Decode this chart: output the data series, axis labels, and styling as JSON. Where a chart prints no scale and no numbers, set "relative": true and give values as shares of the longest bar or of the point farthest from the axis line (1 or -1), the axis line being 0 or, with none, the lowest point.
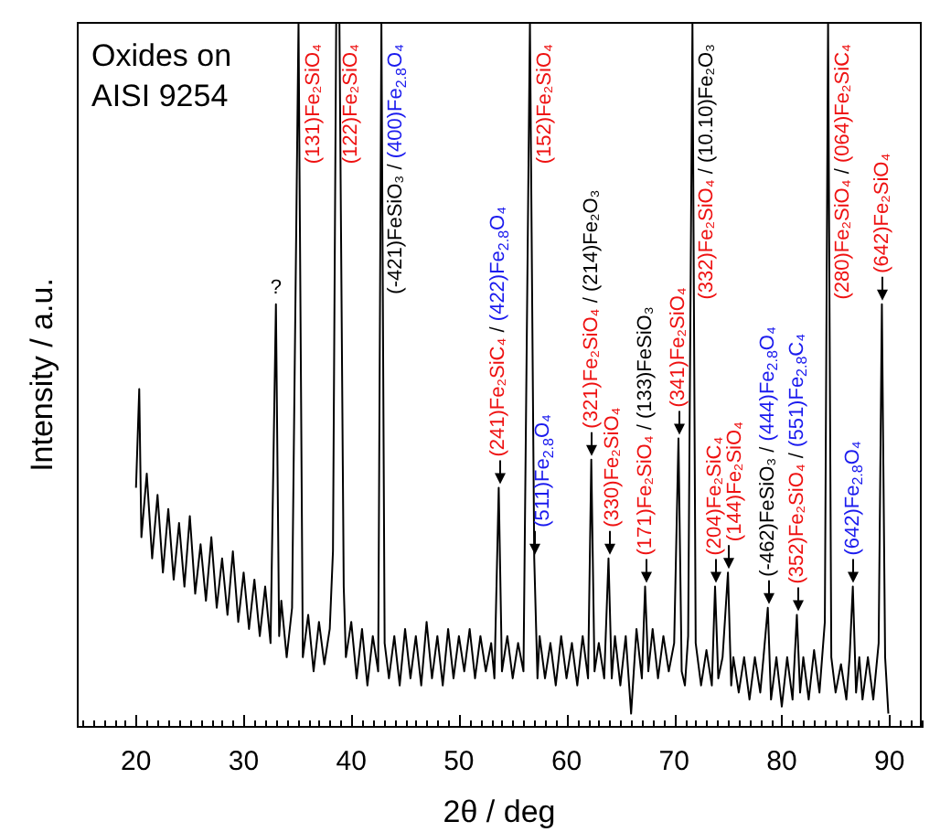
{
  "chart_data": {
    "type": "line",
    "title": "Oxides on AISI 9254",
    "xlabel": "2θ / deg",
    "ylabel": "Intensity / a.u.",
    "relative": true,
    "color": "#000000",
    "xlim": [
      14.5,
      93
    ],
    "xticks": [
      {
        "value": 15,
        "label": null
      },
      {
        "value": 16,
        "label": null
      },
      {
        "value": 17,
        "label": null
      },
      {
        "value": 18,
        "label": null
      },
      {
        "value": 19,
        "label": null
      },
      20,
      {
        "value": 21,
        "label": null
      },
      {
        "value": 22,
        "label": null
      },
      {
        "value": 23,
        "label": null
      },
      {
        "value": 24,
        "label": null
      },
      {
        "value": 25,
        "label": null
      },
      {
        "value": 26,
        "label": null
      },
      {
        "value": 27,
        "label": null
      },
      {
        "value": 28,
        "label": null
      },
      {
        "value": 29,
        "label": null
      },
      30,
      {
        "value": 31,
        "label": null
      },
      {
        "value": 32,
        "label": null
      },
      {
        "value": 33,
        "label": null
      },
      {
        "value": 34,
        "label": null
      },
      {
        "value": 35,
        "label": null
      },
      {
        "value": 36,
        "label": null
      },
      {
        "value": 37,
        "label": null
      },
      {
        "value": 38,
        "label": null
      },
      {
        "value": 39,
        "label": null
      },
      40,
      {
        "value": 41,
        "label": null
      },
      {
        "value": 42,
        "label": null
      },
      {
        "value": 43,
        "label": null
      },
      {
        "value": 44,
        "label": null
      },
      {
        "value": 45,
        "label": null
      },
      {
        "value": 46,
        "label": null
      },
      {
        "value": 47,
        "label": null
      },
      {
        "value": 48,
        "label": null
      },
      {
        "value": 49,
        "label": null
      },
      50,
      {
        "value": 51,
        "label": null
      },
      {
        "value": 52,
        "label": null
      },
      {
        "value": 53,
        "label": null
      },
      {
        "value": 54,
        "label": null
      },
      {
        "value": 55,
        "label": null
      },
      {
        "value": 56,
        "label": null
      },
      {
        "value": 57,
        "label": null
      },
      {
        "value": 58,
        "label": null
      },
      {
        "value": 59,
        "label": null
      },
      60,
      {
        "value": 61,
        "label": null
      },
      {
        "value": 62,
        "label": null
      },
      {
        "value": 63,
        "label": null
      },
      {
        "value": 64,
        "label": null
      },
      {
        "value": 65,
        "label": null
      },
      {
        "value": 66,
        "label": null
      },
      {
        "value": 67,
        "label": null
      },
      {
        "value": 68,
        "label": null
      },
      {
        "value": 69,
        "label": null
      },
      70,
      {
        "value": 71,
        "label": null
      },
      {
        "value": 72,
        "label": null
      },
      {
        "value": 73,
        "label": null
      },
      {
        "value": 74,
        "label": null
      },
      {
        "value": 75,
        "label": null
      },
      {
        "value": 76,
        "label": null
      },
      {
        "value": 77,
        "label": null
      },
      {
        "value": 78,
        "label": null
      },
      {
        "value": 79,
        "label": null
      },
      80,
      {
        "value": 81,
        "label": null
      },
      {
        "value": 82,
        "label": null
      },
      {
        "value": 83,
        "label": null
      },
      {
        "value": 84,
        "label": null
      },
      {
        "value": 85,
        "label": null
      },
      {
        "value": 86,
        "label": null
      },
      {
        "value": 87,
        "label": null
      },
      {
        "value": 88,
        "label": null
      },
      {
        "value": 89,
        "label": null
      },
      90,
      {
        "value": 91,
        "label": null
      },
      {
        "value": 92,
        "label": null
      },
      {
        "value": 93,
        "label": null
      }
    ],
    "x": [
      20.0,
      20.3,
      20.5,
      21.0,
      21.5,
      22.0,
      22.5,
      23.0,
      23.5,
      24.0,
      24.5,
      25.0,
      25.5,
      26.0,
      26.5,
      27.0,
      27.5,
      28.0,
      28.5,
      29.0,
      29.5,
      30.0,
      30.5,
      31.0,
      31.5,
      32.0,
      32.5,
      33.0,
      33.3,
      33.5,
      34.0,
      34.5,
      35.1,
      35.5,
      36.0,
      36.5,
      37.0,
      37.5,
      38.0,
      38.3,
      38.6,
      38.9,
      39.3,
      39.5,
      40.0,
      40.5,
      41.0,
      41.5,
      42.0,
      42.5,
      42.8,
      43.1,
      43.5,
      44.0,
      44.5,
      45.0,
      45.5,
      46.0,
      46.5,
      47.0,
      47.5,
      48.0,
      48.5,
      49.0,
      49.5,
      50.0,
      50.5,
      51.0,
      51.5,
      52.0,
      52.5,
      53.0,
      53.3,
      53.7,
      54.0,
      54.5,
      55.0,
      55.5,
      56.0,
      56.6,
      57.0,
      57.3,
      57.5,
      58.0,
      58.5,
      59.0,
      59.5,
      60.0,
      60.5,
      61.0,
      61.5,
      62.0,
      62.3,
      62.6,
      63.0,
      63.5,
      63.9,
      64.2,
      64.5,
      65.0,
      65.5,
      66.0,
      66.5,
      67.0,
      67.3,
      67.6,
      68.0,
      68.5,
      69.0,
      69.5,
      70.0,
      70.4,
      70.7,
      71.0,
      71.3,
      71.7,
      72.0,
      72.5,
      73.0,
      73.5,
      73.8,
      74.1,
      74.5,
      75.0,
      75.3,
      75.5,
      76.0,
      76.5,
      77.0,
      77.5,
      78.0,
      78.3,
      78.7,
      79.0,
      79.5,
      80.0,
      80.5,
      81.0,
      81.4,
      81.7,
      82.0,
      82.5,
      83.0,
      83.5,
      84.0,
      84.3,
      84.6,
      85.0,
      85.5,
      86.0,
      86.3,
      86.6,
      86.9,
      87.2,
      87.5,
      88.0,
      88.5,
      89.0,
      89.3,
      89.6,
      89.9
    ],
    "values": [
      0.34,
      0.48,
      0.27,
      0.36,
      0.24,
      0.33,
      0.22,
      0.31,
      0.21,
      0.29,
      0.2,
      0.3,
      0.19,
      0.26,
      0.18,
      0.27,
      0.17,
      0.24,
      0.16,
      0.25,
      0.15,
      0.22,
      0.14,
      0.21,
      0.13,
      0.2,
      0.12,
      0.6,
      0.13,
      0.18,
      0.1,
      0.17,
      1,
      0.1,
      0.16,
      0.08,
      0.15,
      0.09,
      0.14,
      0.25,
      1,
      1,
      0.2,
      0.1,
      0.15,
      0.07,
      0.14,
      0.06,
      0.13,
      0.08,
      1,
      0.12,
      0.07,
      0.13,
      0.06,
      0.14,
      0.07,
      0.13,
      0.06,
      0.15,
      0.07,
      0.13,
      0.06,
      0.14,
      0.07,
      0.13,
      0.08,
      0.14,
      0.07,
      0.13,
      0.08,
      0.12,
      0.07,
      0.34,
      0.08,
      0.13,
      0.07,
      0.12,
      0.08,
      1,
      0.24,
      0.07,
      0.13,
      0.07,
      0.12,
      0.06,
      0.13,
      0.07,
      0.12,
      0.06,
      0.13,
      0.07,
      0.38,
      0.08,
      0.12,
      0.07,
      0.24,
      0.07,
      0.13,
      0.06,
      0.13,
      0.02,
      0.14,
      0.07,
      0.2,
      0.08,
      0.14,
      0.07,
      0.13,
      0.08,
      0.12,
      0.41,
      0.08,
      0.06,
      0.13,
      1,
      0.12,
      0.06,
      0.11,
      0.06,
      0.2,
      0.07,
      0.1,
      0.22,
      0.06,
      0.1,
      0.05,
      0.1,
      0.04,
      0.1,
      0.05,
      0.1,
      0.17,
      0.04,
      0.1,
      0.03,
      0.1,
      0.04,
      0.16,
      0.05,
      0.1,
      0.04,
      0.11,
      0.05,
      0.15,
      1,
      0.1,
      0.05,
      0.09,
      0.04,
      0.1,
      0.2,
      0.05,
      0.1,
      0.04,
      0.1,
      0.04,
      0.12,
      0.6,
      0.1,
      0.02
    ],
    "annotations": [
      {
        "text": "?",
        "x": 33.0,
        "y": 0.6
      },
      {
        "text": "(131)Fe₂SiO₄",
        "x": 35.1,
        "y": 1
      },
      {
        "text": "(122)Fe₂SiO₄",
        "x": 38.6,
        "y": 1
      },
      {
        "text": "(-421)FeSiO₃ / (400)Fe$_{2.8}$O₄",
        "x": 42.8,
        "y": 1
      },
      {
        "text": "(241)Fe₂SiC₄ / (422)Fe$_{2.8}$O₄",
        "x": 53.7,
        "y": 0.34
      },
      {
        "text": "(152)Fe₂SiO₄",
        "x": 56.6,
        "y": 1
      },
      {
        "text": "(511)Fe$_{2.8}$O₄",
        "x": 57.0,
        "y": 0.24
      },
      {
        "text": "(321)Fe₂SiO₄ / (214)Fe₂O₃",
        "x": 62.3,
        "y": 0.38
      },
      {
        "text": "(330)Fe₂SiO₄",
        "x": 63.9,
        "y": 0.24
      },
      {
        "text": "(171)Fe₂SiO₄ / (133)FeSiO₃",
        "x": 67.3,
        "y": 0.2
      },
      {
        "text": "(341)Fe₂SiO₄",
        "x": 70.4,
        "y": 0.41
      },
      {
        "text": "(332)Fe₂SiO₄ / (10.10)Fe₂O₃",
        "x": 71.7,
        "y": 1
      },
      {
        "text": "(204)Fe₂SiC₄",
        "x": 73.8,
        "y": 0.2
      },
      {
        "text": "(144)Fe₂SiO₄",
        "x": 75.0,
        "y": 0.22
      },
      {
        "text": "(-462)FeSiO₃ / (444)Fe$_{2.8}$O₄",
        "x": 78.7,
        "y": 0.17
      },
      {
        "text": "(352)Fe₂SiO₄ / (551)Fe$_{2.8}$C₄",
        "x": 81.4,
        "y": 0.16
      },
      {
        "text": "(280)Fe₂SiO₄ / (064)Fe₂SiC₄",
        "x": 84.3,
        "y": 1
      },
      {
        "text": "(642)Fe$_{2.8}$O₄",
        "x": 86.6,
        "y": 0.2
      },
      {
        "text": "(642)Fe₂SiO₄",
        "x": 89.3,
        "y": 0.6
      }
    ]
  }
}
